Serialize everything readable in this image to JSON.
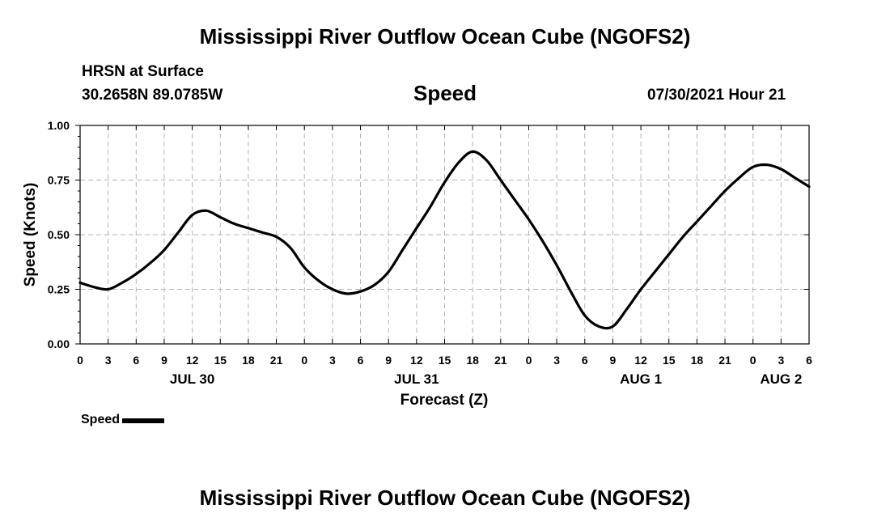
{
  "page": {
    "title_top": "Mississippi River Outflow Ocean Cube (NGOFS2)",
    "title_bottom": "Mississippi River Outflow Ocean Cube (NGOFS2)",
    "station": "HRSN at Surface",
    "coords": "30.2658N  89.0785W",
    "chart_title": "Speed",
    "datetime": "07/30/2021 Hour 21",
    "legend_label": "Speed"
  },
  "chart_data": {
    "type": "line",
    "title": "Speed",
    "xlabel": "Forecast (Z)",
    "ylabel": "Speed (Knots)",
    "xlim": [
      0,
      78
    ],
    "ylim": [
      0,
      1.0
    ],
    "grid": true,
    "yticks": [
      0.0,
      0.25,
      0.5,
      0.75,
      1.0
    ],
    "ytick_labels": [
      "0.00",
      "0.25",
      "0.50",
      "0.75",
      "1.00"
    ],
    "xticks": [
      0,
      3,
      6,
      9,
      12,
      15,
      18,
      21,
      24,
      27,
      30,
      33,
      36,
      39,
      42,
      45,
      48,
      51,
      54,
      57,
      60,
      63,
      66,
      69,
      72,
      75,
      78
    ],
    "xtick_labels": [
      "0",
      "3",
      "6",
      "9",
      "12",
      "15",
      "18",
      "21",
      "0",
      "3",
      "6",
      "9",
      "12",
      "15",
      "18",
      "21",
      "0",
      "3",
      "6",
      "9",
      "12",
      "15",
      "18",
      "21",
      "0",
      "3",
      "6"
    ],
    "day_labels": [
      {
        "hour": 12,
        "label": "JUL 30"
      },
      {
        "hour": 36,
        "label": "JUL 31"
      },
      {
        "hour": 60,
        "label": "AUG 1"
      },
      {
        "hour": 75,
        "label": "AUG 2"
      }
    ],
    "legend": "bottom-left",
    "series": [
      {
        "name": "Speed",
        "x": [
          0,
          1.5,
          3,
          4.5,
          6,
          7.5,
          9,
          10.5,
          12,
          13.5,
          15,
          16.5,
          18,
          19.5,
          21,
          22.5,
          24,
          25.5,
          27,
          28.5,
          30,
          31.5,
          33,
          34.5,
          36,
          37.5,
          39,
          40.5,
          42,
          43.5,
          45,
          46.5,
          48,
          49.5,
          51,
          52.5,
          54,
          55.5,
          57,
          58.5,
          60,
          61.5,
          63,
          64.5,
          66,
          67.5,
          69,
          70.5,
          72,
          73.5,
          75,
          76.5,
          78
        ],
        "values": [
          0.28,
          0.26,
          0.25,
          0.28,
          0.32,
          0.37,
          0.43,
          0.51,
          0.59,
          0.61,
          0.58,
          0.55,
          0.53,
          0.51,
          0.49,
          0.44,
          0.35,
          0.29,
          0.25,
          0.23,
          0.24,
          0.27,
          0.33,
          0.43,
          0.53,
          0.63,
          0.74,
          0.83,
          0.88,
          0.84,
          0.75,
          0.66,
          0.57,
          0.47,
          0.36,
          0.24,
          0.13,
          0.08,
          0.08,
          0.16,
          0.25,
          0.33,
          0.41,
          0.49,
          0.56,
          0.63,
          0.7,
          0.76,
          0.81,
          0.82,
          0.8,
          0.76,
          0.72
        ]
      }
    ]
  }
}
